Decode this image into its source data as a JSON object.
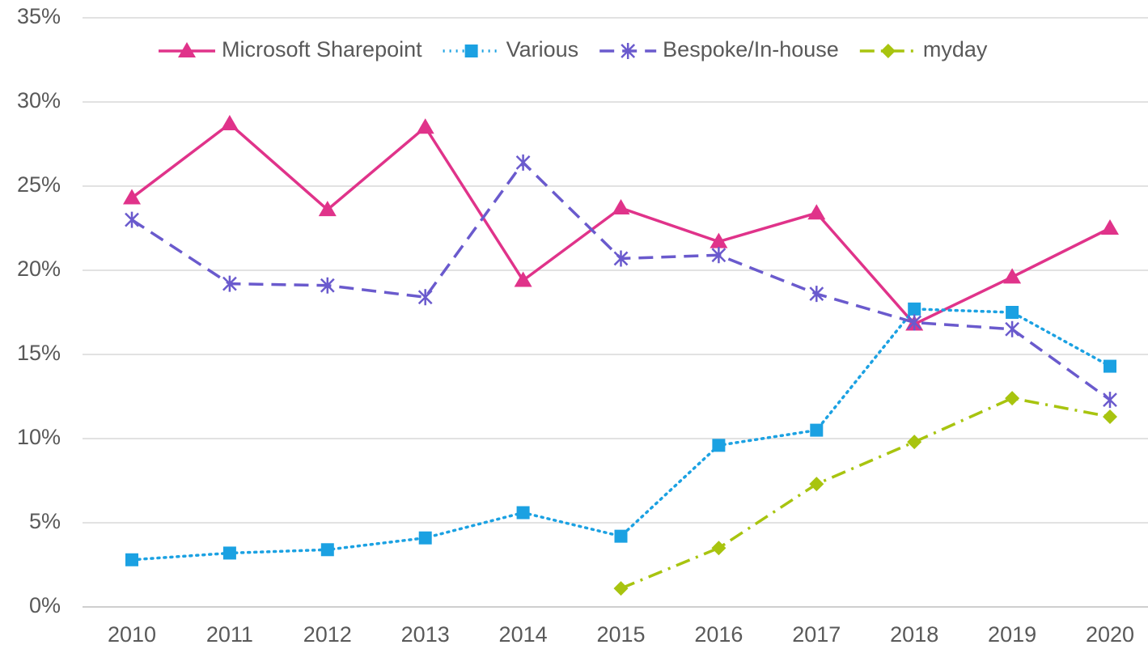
{
  "chart_data": {
    "type": "line",
    "categories": [
      "2010",
      "2011",
      "2012",
      "2013",
      "2014",
      "2015",
      "2016",
      "2017",
      "2018",
      "2019",
      "2020"
    ],
    "series": [
      {
        "name": "Microsoft Sharepoint",
        "color": "#e0338a",
        "line_style": "solid",
        "marker": "triangle",
        "values": [
          24.3,
          28.7,
          23.6,
          28.5,
          19.4,
          23.7,
          21.7,
          23.4,
          16.8,
          19.6,
          22.5
        ]
      },
      {
        "name": "Various",
        "color": "#1ba1e2",
        "line_style": "dotted",
        "marker": "square",
        "values": [
          2.8,
          3.2,
          3.4,
          4.1,
          5.6,
          4.2,
          9.6,
          10.5,
          17.7,
          17.5,
          14.3
        ]
      },
      {
        "name": "Bespoke/In-house",
        "color": "#6a5acd",
        "line_style": "dashed",
        "marker": "asterisk",
        "values": [
          23.0,
          19.2,
          19.1,
          18.4,
          26.4,
          20.7,
          20.9,
          18.6,
          16.9,
          16.5,
          12.3
        ]
      },
      {
        "name": "myday",
        "color": "#a8c40f",
        "line_style": "dashdot",
        "marker": "diamond",
        "values": [
          null,
          null,
          null,
          null,
          null,
          1.1,
          3.5,
          7.3,
          9.8,
          12.4,
          11.3
        ]
      }
    ],
    "ylim": [
      0,
      35
    ],
    "yticks": [
      {
        "value": 0,
        "label": "0%"
      },
      {
        "value": 5,
        "label": "5%"
      },
      {
        "value": 10,
        "label": "10%"
      },
      {
        "value": 15,
        "label": "15%"
      },
      {
        "value": 20,
        "label": "20%"
      },
      {
        "value": 25,
        "label": "25%"
      },
      {
        "value": 30,
        "label": "30%"
      },
      {
        "value": 35,
        "label": "35%"
      }
    ],
    "grid": true,
    "legend": "top"
  }
}
